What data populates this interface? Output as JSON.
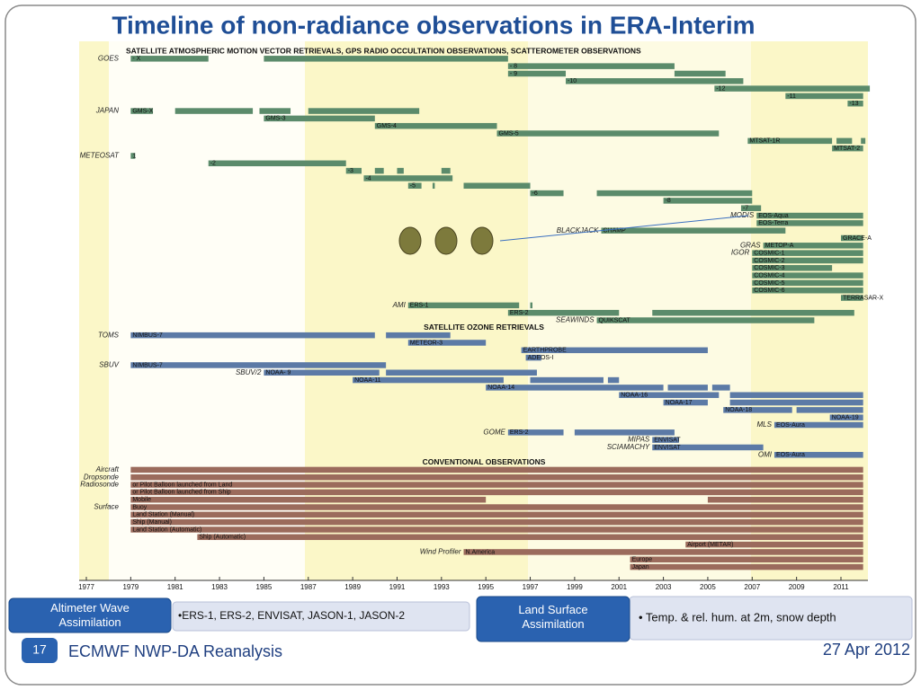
{
  "title": "Timeline of non-radiance observations in ERA-Interim",
  "timeline": {
    "type": "timeline",
    "xlim": [
      1977,
      2013
    ],
    "xticks": [
      1977,
      1979,
      1981,
      1983,
      1985,
      1987,
      1989,
      1991,
      1993,
      1995,
      1997,
      1999,
      2001,
      2003,
      2005,
      2007,
      2009,
      2011
    ],
    "colors": {
      "satellite": "#5b8b6b",
      "ozone": "#5c7aa6",
      "conventional": "#9b6b5c"
    },
    "rows": [
      {
        "header": "SATELLITE ATMOSPHERIC MOTION VECTOR RETRIEVALS, GPS RADIO OCCULTATION OBSERVATIONS, SCATTEROMETER OBSERVATIONS"
      },
      {
        "group": "GOES",
        "label": "- X",
        "kind": "satellite",
        "segments": [
          [
            1979,
            1982.5
          ],
          [
            1985,
            1996
          ]
        ]
      },
      {
        "label": "- 8",
        "kind": "satellite",
        "segments": [
          [
            1996,
            2003.5
          ]
        ]
      },
      {
        "label": "- 9",
        "kind": "satellite",
        "segments": [
          [
            1996,
            1998.6
          ],
          [
            2003.5,
            2005.8
          ]
        ]
      },
      {
        "label": "-10",
        "kind": "satellite",
        "segments": [
          [
            1998.6,
            2006.6
          ]
        ]
      },
      {
        "label": "-12",
        "kind": "satellite",
        "segments": [
          [
            2005.3,
            2012.3
          ]
        ]
      },
      {
        "label": "-11",
        "kind": "satellite",
        "segments": [
          [
            2008.5,
            2012
          ]
        ]
      },
      {
        "label": "-13",
        "kind": "satellite",
        "segments": [
          [
            2011.3,
            2012
          ]
        ]
      },
      {
        "group": "JAPAN",
        "label": "GMS-X",
        "kind": "satellite",
        "segments": [
          [
            1979,
            1980
          ],
          [
            1981,
            1984.5
          ],
          [
            1984.8,
            1986.2
          ],
          [
            1987,
            1992
          ]
        ]
      },
      {
        "label": "GMS-3",
        "kind": "satellite",
        "segments": [
          [
            1985,
            1990
          ]
        ]
      },
      {
        "label": "GMS-4",
        "kind": "satellite",
        "segments": [
          [
            1990,
            1995.5
          ]
        ]
      },
      {
        "label": "GMS-5",
        "kind": "satellite",
        "segments": [
          [
            1995.5,
            2005.5
          ]
        ]
      },
      {
        "label": "MTSAT-1R",
        "kind": "satellite",
        "segments": [
          [
            2006.8,
            2010.6
          ],
          [
            2010.8,
            2011.5
          ],
          [
            2011.9,
            2012.1
          ]
        ]
      },
      {
        "label": "MTSAT-2",
        "kind": "satellite",
        "segments": [
          [
            2010.6,
            2012
          ]
        ]
      },
      {
        "group": "METEOSAT",
        "label": "1",
        "kind": "satellite",
        "segments": [
          [
            1979,
            1979.2
          ]
        ]
      },
      {
        "label": "-2",
        "kind": "satellite",
        "segments": [
          [
            1982.5,
            1988.7
          ]
        ]
      },
      {
        "label": "-3",
        "kind": "satellite",
        "segments": [
          [
            1988.7,
            1989.4
          ],
          [
            1990,
            1990.4
          ],
          [
            1991,
            1991.3
          ],
          [
            1993,
            1993.4
          ]
        ]
      },
      {
        "label": "-4",
        "kind": "satellite",
        "segments": [
          [
            1989.5,
            1993.5
          ]
        ]
      },
      {
        "label": "-5",
        "kind": "satellite",
        "segments": [
          [
            1991.5,
            1992.1
          ],
          [
            1992.6,
            1992.7
          ],
          [
            1994,
            1997
          ]
        ]
      },
      {
        "label": "-6",
        "kind": "satellite",
        "segments": [
          [
            1997,
            1998.5
          ],
          [
            2000,
            2007
          ]
        ]
      },
      {
        "label": "-8",
        "kind": "satellite",
        "segments": [
          [
            2003,
            2007
          ]
        ]
      },
      {
        "label": "-7",
        "kind": "satellite",
        "segments": [
          [
            2006.5,
            2007.4
          ]
        ]
      },
      {
        "group": "MODIS",
        "label": "EOS-Aqua",
        "kind": "satellite",
        "segments": [
          [
            2007.2,
            2012
          ]
        ]
      },
      {
        "label": "EOS-Terra",
        "kind": "satellite",
        "segments": [
          [
            2007.2,
            2012
          ]
        ]
      },
      {
        "group": "BLACKJACK",
        "label": "CHAMP",
        "kind": "satellite",
        "segments": [
          [
            2000.2,
            2008.5
          ]
        ]
      },
      {
        "label": "GRACE-A",
        "kind": "satellite",
        "segments": [
          [
            2011,
            2012
          ]
        ]
      },
      {
        "group": "GRAS",
        "label": "METOP-A",
        "kind": "satellite",
        "segments": [
          [
            2007.5,
            2012
          ]
        ]
      },
      {
        "group": "IGOR",
        "label": "COSMIC-1",
        "kind": "satellite",
        "segments": [
          [
            2007,
            2012
          ]
        ]
      },
      {
        "label": "COSMIC-2",
        "kind": "satellite",
        "segments": [
          [
            2007,
            2012
          ]
        ]
      },
      {
        "label": "COSMIC-3",
        "kind": "satellite",
        "segments": [
          [
            2007,
            2010.6
          ]
        ]
      },
      {
        "label": "COSMIC-4",
        "kind": "satellite",
        "segments": [
          [
            2007,
            2012
          ]
        ]
      },
      {
        "label": "COSMIC-5",
        "kind": "satellite",
        "segments": [
          [
            2007,
            2012
          ]
        ]
      },
      {
        "label": "COSMIC-6",
        "kind": "satellite",
        "segments": [
          [
            2007,
            2012
          ]
        ]
      },
      {
        "label": "TERRASAR-X",
        "kind": "satellite",
        "segments": [
          [
            2011,
            2012
          ]
        ]
      },
      {
        "group": "AMI",
        "label": "ERS-1",
        "kind": "satellite",
        "segments": [
          [
            1991.5,
            1996.5
          ],
          [
            1997,
            1997.1
          ]
        ]
      },
      {
        "label": "ERS-2",
        "kind": "satellite",
        "segments": [
          [
            1996,
            2001
          ],
          [
            2002.5,
            2011.6
          ]
        ]
      },
      {
        "group": "SEAWINDS",
        "label": "QUIKSCAT",
        "kind": "satellite",
        "segments": [
          [
            2000,
            2009.8
          ]
        ]
      },
      {
        "header": "SATELLITE OZONE RETRIEVALS"
      },
      {
        "group": "TOMS",
        "label": "NIMBUS-7",
        "kind": "ozone",
        "segments": [
          [
            1979,
            1990
          ],
          [
            1990.5,
            1993.4
          ]
        ]
      },
      {
        "label": "METEOR-3",
        "kind": "ozone",
        "segments": [
          [
            1991.5,
            1995
          ]
        ]
      },
      {
        "label": "EARTHPROBE",
        "kind": "ozone",
        "segments": [
          [
            1996.6,
            2005
          ]
        ]
      },
      {
        "label": "ADEOS-I",
        "kind": "ozone",
        "segments": [
          [
            1996.8,
            1997.5
          ]
        ]
      },
      {
        "group": "SBUV",
        "label": "NIMBUS-7",
        "kind": "ozone",
        "segments": [
          [
            1979,
            1990.5
          ]
        ]
      },
      {
        "group": "SBUV/2",
        "label": "NOAA- 9",
        "kind": "ozone",
        "segments": [
          [
            1985,
            1990.2
          ],
          [
            1990.5,
            1997.3
          ]
        ]
      },
      {
        "label": "NOAA-11",
        "kind": "ozone",
        "segments": [
          [
            1989,
            1995.8
          ],
          [
            1997,
            2000.3
          ],
          [
            2000.5,
            2001
          ]
        ]
      },
      {
        "label": "NOAA-14",
        "kind": "ozone",
        "segments": [
          [
            1995,
            2003
          ],
          [
            2003.2,
            2005
          ],
          [
            2005.2,
            2006
          ]
        ]
      },
      {
        "label": "NOAA-16",
        "kind": "ozone",
        "segments": [
          [
            2001,
            2005.5
          ],
          [
            2006,
            2012
          ]
        ]
      },
      {
        "label": "NOAA-17",
        "kind": "ozone",
        "segments": [
          [
            2003,
            2005
          ],
          [
            2006,
            2012
          ]
        ]
      },
      {
        "label": "NOAA-18",
        "kind": "ozone",
        "segments": [
          [
            2005.7,
            2008.8
          ],
          [
            2009,
            2012
          ]
        ]
      },
      {
        "label": "NOAA-19",
        "kind": "ozone",
        "segments": [
          [
            2010.5,
            2012
          ]
        ]
      },
      {
        "group": "MLS",
        "label": "EOS-Aura",
        "kind": "ozone",
        "segments": [
          [
            2008,
            2012
          ]
        ]
      },
      {
        "group": "GOME",
        "label": "ERS-2",
        "kind": "ozone",
        "segments": [
          [
            1996,
            1998.5
          ],
          [
            1999,
            2003.5
          ]
        ]
      },
      {
        "group": "MIPAS",
        "label": "ENVISAT",
        "kind": "ozone",
        "segments": [
          [
            2002.5,
            2003.7
          ]
        ]
      },
      {
        "group": "SCIAMACHY",
        "label": "ENVISAT",
        "kind": "ozone",
        "segments": [
          [
            2002.5,
            2007.5
          ]
        ]
      },
      {
        "group": "OMI",
        "label": "EOS-Aura",
        "kind": "ozone",
        "segments": [
          [
            2008,
            2012
          ]
        ]
      },
      {
        "header": "CONVENTIONAL OBSERVATIONS"
      },
      {
        "group": "Aircraft",
        "kind": "conventional",
        "segments": [
          [
            1979,
            2012
          ]
        ]
      },
      {
        "group": "Dropsonde",
        "kind": "conventional",
        "segments": [
          [
            1979,
            2012
          ]
        ]
      },
      {
        "group": "Radiosonde",
        "label": "or Pilot Balloon launched from Land",
        "kind": "conventional",
        "segments": [
          [
            1979,
            2012
          ]
        ]
      },
      {
        "label": "or Pilot Balloon launched from Ship",
        "kind": "conventional",
        "segments": [
          [
            1979,
            2012
          ]
        ]
      },
      {
        "label": "Mobile",
        "kind": "conventional",
        "segments": [
          [
            1979,
            1995
          ],
          [
            2005,
            2012
          ]
        ]
      },
      {
        "group": "Surface",
        "label": "Buoy",
        "kind": "conventional",
        "segments": [
          [
            1979,
            2012
          ]
        ]
      },
      {
        "label": "Land Station (Manual)",
        "kind": "conventional",
        "segments": [
          [
            1979,
            2012
          ]
        ]
      },
      {
        "label": "Ship (Manual)",
        "kind": "conventional",
        "segments": [
          [
            1979,
            2012
          ]
        ]
      },
      {
        "label": "Land Station (Automatic)",
        "kind": "conventional",
        "segments": [
          [
            1979,
            2012
          ]
        ]
      },
      {
        "label": "Ship (Automatic)",
        "kind": "conventional",
        "segments": [
          [
            1982,
            2012
          ]
        ]
      },
      {
        "label": "Airport (METAR)",
        "kind": "conventional",
        "segments": [
          [
            2004,
            2012
          ]
        ]
      },
      {
        "group": "Wind Profiler",
        "label": "N.America",
        "kind": "conventional",
        "segments": [
          [
            1994,
            2012
          ]
        ]
      },
      {
        "label": "Europe",
        "kind": "conventional",
        "segments": [
          [
            2001.5,
            2012
          ]
        ]
      },
      {
        "label": "Japan",
        "kind": "conventional",
        "segments": [
          [
            2001.5,
            2012
          ]
        ]
      }
    ]
  },
  "boxes": [
    {
      "heading": "Altimeter Wave Assimilation",
      "text": "•ERS-1, ERS-2, ENVISAT, JASON-1, JASON-2"
    },
    {
      "heading": "Land Surface Assimilation",
      "text": "• Temp. & rel. hum. at 2m, snow depth"
    }
  ],
  "footer": {
    "page": "17",
    "left": "ECMWF NWP-DA Reanalysis",
    "date": "27 Apr 2012"
  }
}
